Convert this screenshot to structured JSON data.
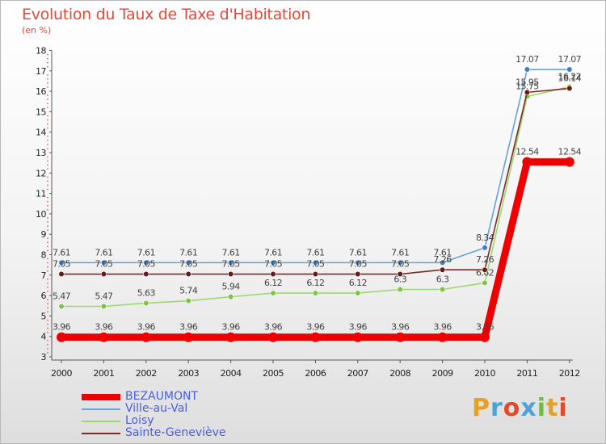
{
  "header": {
    "title": "Evolution du Taux de Taxe d'Habitation",
    "unit": "(en %)"
  },
  "logo": {
    "text": "Proxiti",
    "letter_colors": [
      "#e8a020",
      "#4aa3d8",
      "#e04a2a",
      "#4aa3d8",
      "#6cbf3a",
      "#e8a020",
      "#e04a2a"
    ]
  },
  "chart_data": {
    "type": "line",
    "title": "Evolution du Taux de Taxe d'Habitation",
    "ylabel": "(en %)",
    "xlabel": "",
    "x": [
      "2000",
      "2001",
      "2002",
      "2003",
      "2004",
      "2005",
      "2006",
      "2007",
      "2008",
      "2009",
      "2010",
      "2011",
      "2012"
    ],
    "ylim": [
      3,
      18
    ],
    "yticks": [
      "3",
      "4",
      "5",
      "6",
      "7",
      "8",
      "9",
      "10",
      "11",
      "12",
      "13",
      "14",
      "15",
      "16",
      "17",
      "18"
    ],
    "grid": false,
    "legend_position": "bottom-left",
    "series": [
      {
        "name": "BEZAUMONT",
        "color": "#ee0000",
        "emphasis": true,
        "values": [
          3.96,
          3.96,
          3.96,
          3.96,
          3.96,
          3.96,
          3.96,
          3.96,
          3.96,
          3.96,
          3.96,
          12.54,
          12.54
        ],
        "labels": [
          "3.96",
          "3.96",
          "3.96",
          "3.96",
          "3.96",
          "3.96",
          "3.96",
          "3.96",
          "3.96",
          "3.96",
          "3.96",
          "12.54",
          "12.54"
        ]
      },
      {
        "name": "Ville-au-Val",
        "color": "#6aa2d4",
        "marker": "#3d7fc1",
        "values": [
          7.61,
          7.61,
          7.61,
          7.61,
          7.61,
          7.61,
          7.61,
          7.61,
          7.61,
          7.61,
          8.34,
          17.07,
          17.07
        ],
        "labels": [
          "7.61",
          "7.61",
          "7.61",
          "7.61",
          "7.61",
          "7.61",
          "7.61",
          "7.61",
          "7.61",
          "7.61",
          "8.34",
          "17.07",
          "17.07"
        ]
      },
      {
        "name": "Loisy",
        "color": "#9ed86a",
        "marker": "#7cc446",
        "values": [
          5.47,
          5.47,
          5.63,
          5.74,
          5.94,
          6.12,
          6.12,
          6.12,
          6.3,
          6.3,
          6.62,
          15.75,
          16.22
        ],
        "labels": [
          "5.47",
          "5.47",
          "5.63",
          "5.74",
          "5.94",
          "6.12",
          "6.12",
          "6.12",
          "6.3",
          "6.3",
          "6.62",
          "15.75",
          "16.22"
        ]
      },
      {
        "name": "Sainte-Geneviève",
        "color": "#7a2a2a",
        "marker": "#6a1818",
        "values": [
          7.05,
          7.05,
          7.05,
          7.05,
          7.05,
          7.05,
          7.05,
          7.05,
          7.05,
          7.26,
          7.26,
          15.95,
          16.14
        ],
        "labels": [
          "7.05",
          "7.05",
          "7.05",
          "7.05",
          "7.05",
          "7.05",
          "7.05",
          "7.05",
          "7.05",
          "7.26",
          "7.26",
          "15.95",
          "16.14"
        ]
      }
    ]
  }
}
